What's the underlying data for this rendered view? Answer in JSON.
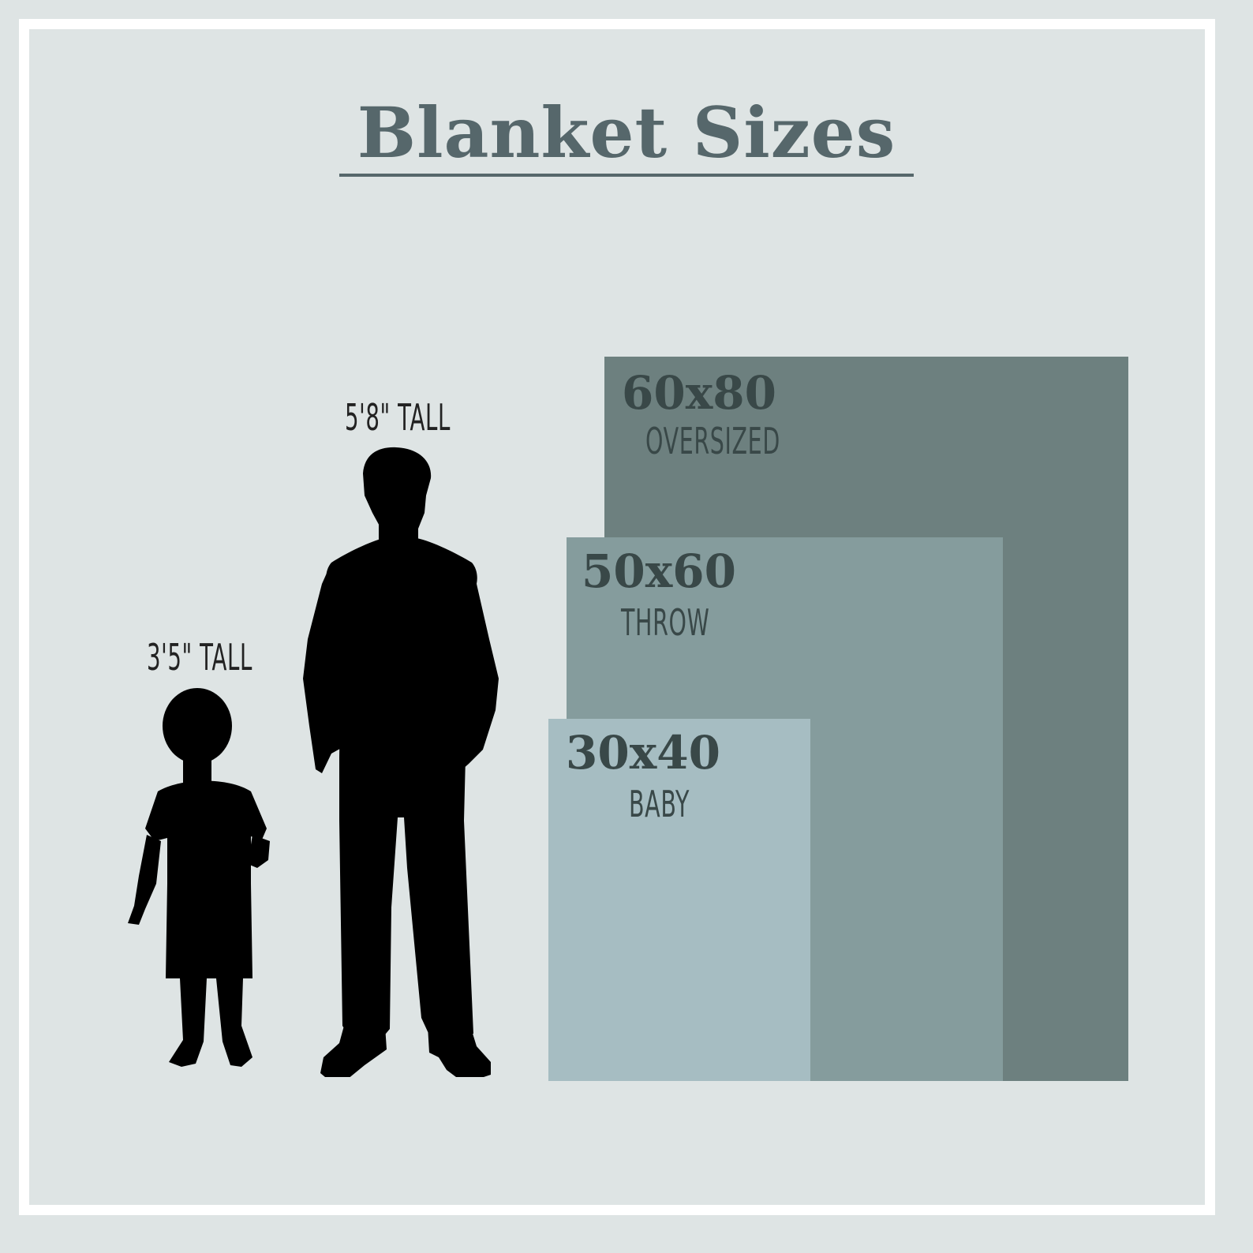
{
  "title": "Blanket Sizes",
  "colors": {
    "background": "#dee4e4",
    "frame": "#ffffff",
    "title": "#56676b",
    "oversized": "#6d807f",
    "throw": "#859c9d",
    "baby": "#a6bdc2",
    "label": "#394848",
    "silhouette": "#000000"
  },
  "people": [
    {
      "height_label": "3'5\" TALL",
      "icon": "child-silhouette-icon"
    },
    {
      "height_label": "5'8\" TALL",
      "icon": "adult-silhouette-icon"
    }
  ],
  "blankets": [
    {
      "size": "60x80",
      "type": "OVERSIZED"
    },
    {
      "size": "50x60",
      "type": "THROW"
    },
    {
      "size": "30x40",
      "type": "BABY"
    }
  ]
}
